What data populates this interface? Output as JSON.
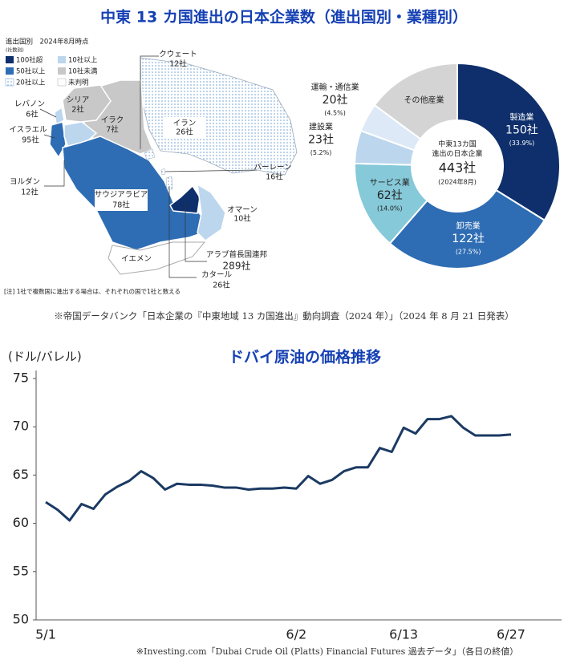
{
  "header": {
    "title": "中東 13 カ国進出の日本企業数（進出国別・業種別）"
  },
  "map": {
    "legend_title": "進出国別　2024年8月時点",
    "legend_subtitle": "(社数別)",
    "legend": [
      "100社超",
      "50社以上",
      "20社以上",
      "10社以上",
      "10社未満",
      "未判明"
    ],
    "countries": [
      {
        "name": "クウェート",
        "count": "12社"
      },
      {
        "name": "シリア",
        "count": "2社"
      },
      {
        "name": "レバノン",
        "count": "6社"
      },
      {
        "name": "イラク",
        "count": "7社"
      },
      {
        "name": "イラン",
        "count": "26社"
      },
      {
        "name": "イスラエル",
        "count": "95社"
      },
      {
        "name": "バーレーン",
        "count": "16社"
      },
      {
        "name": "ヨルダン",
        "count": "12社"
      },
      {
        "name": "サウジアラビア",
        "count": "78社"
      },
      {
        "name": "オマーン",
        "count": "10社"
      },
      {
        "name": "イエメン"
      },
      {
        "name": "アラブ首長国連邦",
        "count": "289社"
      },
      {
        "name": "カタール",
        "count": "26社"
      }
    ],
    "note": "[注] 1社で複数国に進出する場合は、それぞれの国で1社と数える"
  },
  "chart_data": [
    {
      "type": "pie",
      "categories": [
        "製造業",
        "卸売業",
        "サービス業",
        "建設業",
        "運輸・通信業",
        "その他産業"
      ],
      "values": [
        150,
        122,
        62,
        23,
        20,
        66
      ],
      "value_labels": [
        "150社",
        "122社",
        "62社",
        "23社",
        "20社",
        null
      ],
      "percent_labels": [
        "(33.9%)",
        "(27.5%)",
        "(14.0%)",
        "(5.2%)",
        "(4.5%)",
        null
      ],
      "colors": [
        "#0e2f6b",
        "#2e6db4",
        "#86c9d9",
        "#bcd6ee",
        "#dde9f6",
        "#d4d4d4"
      ],
      "center_lines": [
        "中東13カ国",
        "進出の日本企業"
      ],
      "total": "443社",
      "as_of": "(2024年8月)"
    },
    {
      "type": "line",
      "title": "ドバイ原油の価格推移",
      "y_label": "(ドル/バレル)",
      "categories": [
        "5/1",
        null,
        null,
        null,
        null,
        null,
        null,
        null,
        null,
        null,
        null,
        null,
        null,
        null,
        null,
        null,
        null,
        null,
        null,
        null,
        null,
        "6/2",
        null,
        null,
        null,
        null,
        null,
        null,
        null,
        null,
        "6/13",
        null,
        null,
        null,
        null,
        null,
        null,
        null,
        null,
        "6/27"
      ],
      "values": [
        62.2,
        61.4,
        60.3,
        62.0,
        61.5,
        63.0,
        63.8,
        64.4,
        65.4,
        64.7,
        63.5,
        64.1,
        64.0,
        64.0,
        63.9,
        63.7,
        63.7,
        63.5,
        63.6,
        63.6,
        63.7,
        63.6,
        64.9,
        64.1,
        64.5,
        65.4,
        65.8,
        65.8,
        67.8,
        67.4,
        69.9,
        69.3,
        70.8,
        70.8,
        71.1,
        69.9,
        69.1,
        69.1,
        69.1,
        69.2
      ],
      "color": "#1b3a63",
      "ylim": [
        50,
        75
      ],
      "yticks": [
        50,
        55,
        60,
        65,
        70,
        75
      ]
    }
  ],
  "notes": {
    "survey_source": "※帝国データバンク「日本企業の『中東地域 13 カ国進出』動向調査（2024 年）」（2024 年 8 月 21 日発表）",
    "price_source": "※Investing.com「Dubai Crude Oil (Platts) Financial Futures 過去データ」（各日の終値）"
  }
}
